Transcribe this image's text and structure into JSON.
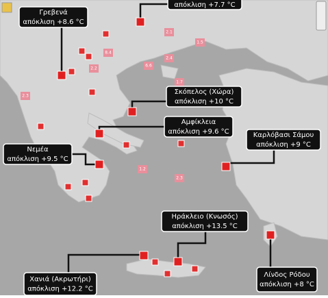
{
  "callouts": [
    {
      "name": null,
      "label": "απόκλιση +7.7 °C"
    },
    {
      "name": "Γρεβενά",
      "label": "απόκλιση +8.6 °C"
    },
    {
      "name": "Σκόπελος (Χώρα)",
      "label": "απόκλιση +10 °C"
    },
    {
      "name": "Αμφίκλεια",
      "label": "απόκλιση +9.6 °C"
    },
    {
      "name": "Καρλόβασι Σάμου",
      "label": "απόκλιση +9 °C"
    },
    {
      "name": "Νεμέα",
      "label": "απόκλιση +9.5 °C"
    },
    {
      "name": "Ηράκλειο (Κνωσός)",
      "label": "απόκλιση +13.5 °C"
    },
    {
      "name": "Χανιά (Ακρωτήρι)",
      "label": "απόκλιση +12.2 °C"
    },
    {
      "name": "Λίνδος Ρόδου",
      "label": "απόκλιση +8 °C"
    }
  ],
  "map_labels": [
    "2.1",
    "1.5",
    "8.4",
    "2.2",
    "6.6",
    "2.4",
    "1.7",
    "2.3",
    "1.2",
    "2.3"
  ]
}
